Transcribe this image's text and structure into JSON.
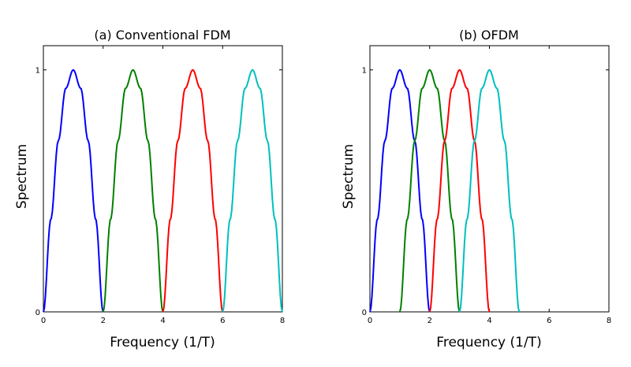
{
  "chart_data": [
    {
      "type": "line",
      "title": "(a) Conventional FDM",
      "xlabel": "Frequency (1/T)",
      "ylabel": "Spectrum",
      "xlim": [
        0,
        8
      ],
      "ylim": [
        0,
        1.1
      ],
      "xticks": [
        "0",
        "2",
        "4",
        "6",
        "8"
      ],
      "yticks": [
        "0",
        "1"
      ],
      "grid": false,
      "series": [
        {
          "color": "#0000ff",
          "x": [
            0.0,
            0.25,
            0.5,
            0.75,
            1.0,
            1.25,
            1.5,
            1.75,
            2.0
          ],
          "values": [
            0.0,
            0.383,
            0.707,
            0.924,
            1.0,
            0.924,
            0.707,
            0.383,
            0.0
          ]
        },
        {
          "color": "#008000",
          "x": [
            2.0,
            2.25,
            2.5,
            2.75,
            3.0,
            3.25,
            3.5,
            3.75,
            4.0
          ],
          "values": [
            0.0,
            0.383,
            0.707,
            0.924,
            1.0,
            0.924,
            0.707,
            0.383,
            0.0
          ]
        },
        {
          "color": "#ff0000",
          "x": [
            4.0,
            4.25,
            4.5,
            4.75,
            5.0,
            5.25,
            5.5,
            5.75,
            6.0
          ],
          "values": [
            0.0,
            0.383,
            0.707,
            0.924,
            1.0,
            0.924,
            0.707,
            0.383,
            0.0
          ]
        },
        {
          "color": "#00bfbf",
          "x": [
            6.0,
            6.25,
            6.5,
            6.75,
            7.0,
            7.25,
            7.5,
            7.75,
            8.0
          ],
          "values": [
            0.0,
            0.383,
            0.707,
            0.924,
            1.0,
            0.924,
            0.707,
            0.383,
            0.0
          ]
        }
      ]
    },
    {
      "type": "line",
      "title": "(b) OFDM",
      "xlabel": "Frequency (1/T)",
      "ylabel": "Spectrum",
      "xlim": [
        0,
        8
      ],
      "ylim": [
        0,
        1.1
      ],
      "xticks": [
        "0",
        "2",
        "4",
        "6",
        "8"
      ],
      "yticks": [
        "0",
        "1"
      ],
      "grid": false,
      "series": [
        {
          "color": "#0000ff",
          "x": [
            0.0,
            0.25,
            0.5,
            0.75,
            1.0,
            1.25,
            1.5,
            1.75,
            2.0
          ],
          "values": [
            0.0,
            0.383,
            0.707,
            0.924,
            1.0,
            0.924,
            0.707,
            0.383,
            0.0
          ]
        },
        {
          "color": "#008000",
          "x": [
            1.0,
            1.25,
            1.5,
            1.75,
            2.0,
            2.25,
            2.5,
            2.75,
            3.0
          ],
          "values": [
            0.0,
            0.383,
            0.707,
            0.924,
            1.0,
            0.924,
            0.707,
            0.383,
            0.0
          ]
        },
        {
          "color": "#ff0000",
          "x": [
            2.0,
            2.25,
            2.5,
            2.75,
            3.0,
            3.25,
            3.5,
            3.75,
            4.0
          ],
          "values": [
            0.0,
            0.383,
            0.707,
            0.924,
            1.0,
            0.924,
            0.707,
            0.383,
            0.0
          ]
        },
        {
          "color": "#00bfbf",
          "x": [
            3.0,
            3.25,
            3.5,
            3.75,
            4.0,
            4.25,
            4.5,
            4.75,
            5.0
          ],
          "values": [
            0.0,
            0.383,
            0.707,
            0.924,
            1.0,
            0.924,
            0.707,
            0.383,
            0.0
          ]
        }
      ]
    }
  ]
}
